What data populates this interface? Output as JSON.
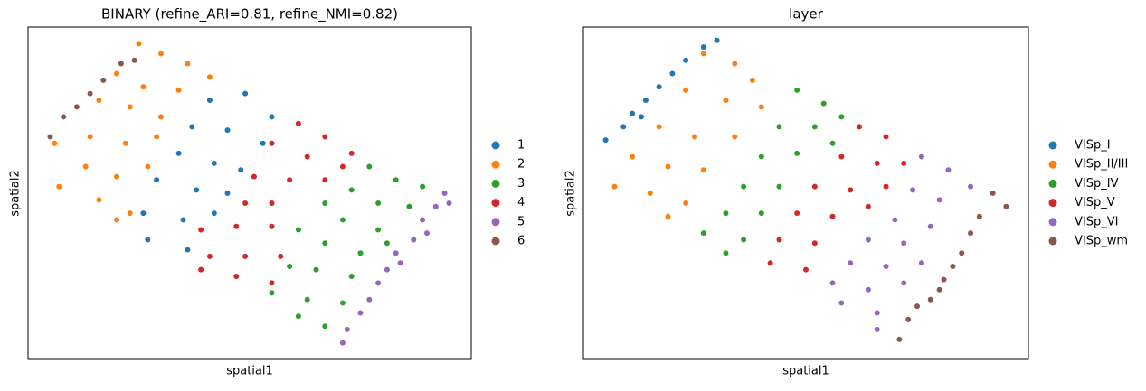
{
  "chart_data": [
    {
      "type": "scatter",
      "title": "BINARY (refine_ARI=0.81, refine_NMI=0.82)",
      "x_label": "spatial1",
      "y_label": "spatial2",
      "xlim": [
        0,
        100
      ],
      "ylim": [
        0,
        100
      ],
      "legend": "right",
      "series": [
        {
          "name": "1",
          "color": "#1f77b4",
          "x": [
            41,
            49,
            55,
            37,
            45,
            53,
            34,
            42,
            48,
            29,
            38,
            45,
            26,
            35,
            42,
            27,
            36
          ],
          "y": [
            78,
            80,
            73,
            70,
            69,
            65,
            62,
            59,
            57,
            54,
            51,
            50,
            44,
            42,
            44,
            36,
            33
          ]
        },
        {
          "name": "2",
          "color": "#ff7f0e",
          "x": [
            25,
            30,
            36,
            41,
            20,
            26,
            34,
            16,
            23,
            30,
            14,
            22,
            29,
            6,
            13,
            20,
            27,
            7,
            16,
            23,
            20
          ],
          "y": [
            95,
            92,
            89,
            85,
            86,
            82,
            81,
            78,
            76,
            73,
            67,
            65,
            67,
            65,
            58,
            55,
            58,
            52,
            48,
            44,
            42
          ]
        },
        {
          "name": "3",
          "color": "#2ca02c",
          "x": [
            77,
            83,
            89,
            73,
            79,
            86,
            67,
            71,
            79,
            61,
            67,
            75,
            81,
            59,
            65,
            73,
            55,
            63,
            71,
            61,
            67
          ],
          "y": [
            58,
            54,
            52,
            51,
            47,
            46,
            47,
            42,
            39,
            39,
            35,
            32,
            35,
            28,
            27,
            25,
            20,
            18,
            17,
            13,
            10
          ]
        },
        {
          "name": "4",
          "color": "#d62728",
          "x": [
            61,
            67,
            73,
            55,
            63,
            71,
            51,
            59,
            67,
            49,
            55,
            39,
            47,
            55,
            41,
            49,
            57,
            39,
            47,
            55
          ],
          "y": [
            71,
            67,
            62,
            65,
            61,
            58,
            55,
            54,
            54,
            47,
            47,
            39,
            40,
            40,
            31,
            31,
            31,
            27,
            25,
            23
          ]
        },
        {
          "name": "5",
          "color": "#9467bd",
          "x": [
            94,
            92,
            89,
            87,
            83,
            81,
            79,
            77,
            75,
            72,
            71,
            95,
            90,
            84
          ],
          "y": [
            50,
            46,
            42,
            36,
            32,
            27,
            23,
            18,
            14,
            9,
            5,
            47,
            38,
            29
          ]
        },
        {
          "name": "6",
          "color": "#8c564b",
          "x": [
            5,
            8,
            11,
            14,
            17,
            21,
            24
          ],
          "y": [
            67,
            73,
            76,
            80,
            84,
            89,
            90
          ]
        }
      ]
    },
    {
      "type": "scatter",
      "title": "layer",
      "x_label": "spatial1",
      "y_label": "spatial2",
      "xlim": [
        0,
        100
      ],
      "ylim": [
        0,
        100
      ],
      "legend": "right",
      "series": [
        {
          "name": "VISp_I",
          "color": "#1f77b4",
          "x": [
            5,
            9,
            11,
            14,
            17,
            20,
            23,
            27,
            30,
            13
          ],
          "y": [
            66,
            70,
            74,
            78,
            82,
            86,
            90,
            94,
            96,
            73
          ]
        },
        {
          "name": "VISp_II/III",
          "color": "#ff7f0e",
          "x": [
            27,
            34,
            38,
            23,
            32,
            40,
            17,
            25,
            34,
            11,
            19,
            27,
            7,
            15,
            23,
            19
          ],
          "y": [
            92,
            89,
            84,
            81,
            78,
            76,
            70,
            67,
            67,
            61,
            58,
            57,
            52,
            50,
            47,
            43
          ]
        },
        {
          "name": "VISp_IV",
          "color": "#2ca02c",
          "x": [
            48,
            54,
            44,
            52,
            58,
            40,
            48,
            56,
            36,
            44,
            32,
            40,
            27,
            36,
            32
          ],
          "y": [
            81,
            77,
            70,
            70,
            73,
            61,
            62,
            65,
            52,
            52,
            44,
            44,
            38,
            36,
            32
          ]
        },
        {
          "name": "VISp_V",
          "color": "#d62728",
          "x": [
            62,
            68,
            58,
            66,
            72,
            52,
            60,
            68,
            48,
            56,
            64,
            44,
            52,
            42,
            50
          ],
          "y": [
            70,
            67,
            61,
            59,
            59,
            52,
            51,
            52,
            44,
            43,
            46,
            36,
            35,
            29,
            27
          ]
        },
        {
          "name": "VISp_VI",
          "color": "#9467bd",
          "x": [
            76,
            82,
            87,
            74,
            80,
            70,
            78,
            64,
            72,
            60,
            68,
            76,
            56,
            64,
            72,
            58,
            66,
            66
          ],
          "y": [
            61,
            57,
            52,
            51,
            48,
            42,
            40,
            36,
            35,
            29,
            28,
            29,
            23,
            21,
            23,
            17,
            14,
            9
          ]
        },
        {
          "name": "VISp_wm",
          "color": "#8c564b",
          "x": [
            92,
            95,
            89,
            87,
            85,
            83,
            81,
            80,
            78,
            75,
            73,
            71
          ],
          "y": [
            50,
            46,
            43,
            38,
            32,
            28,
            24,
            21,
            18,
            16,
            12,
            6
          ]
        }
      ]
    }
  ]
}
